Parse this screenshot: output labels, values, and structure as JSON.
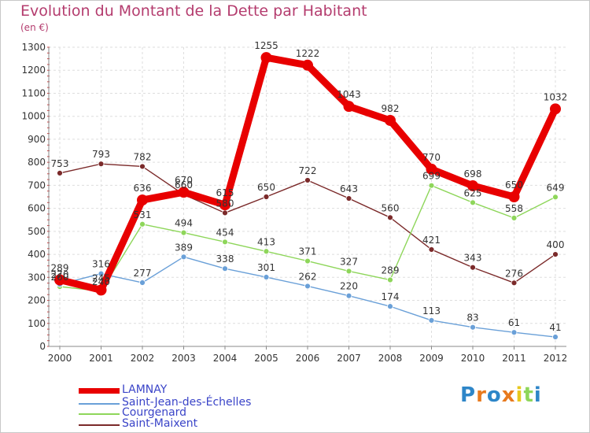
{
  "title": "Evolution du Montant de la Dette par Habitant",
  "unit": "(en €)",
  "logo": "Proxiti",
  "chart_data": {
    "type": "line",
    "x": [
      "2000",
      "2001",
      "2002",
      "2003",
      "2004",
      "2005",
      "2006",
      "2007",
      "2008",
      "2009",
      "2010",
      "2011",
      "2012"
    ],
    "ylim": [
      0,
      1300
    ],
    "yticks": [
      0,
      100,
      200,
      300,
      400,
      500,
      600,
      700,
      800,
      900,
      1000,
      1100,
      1200,
      1300
    ],
    "grid": true,
    "legend_position": "bottom-left",
    "series": [
      {
        "name": "Saint-Maixent",
        "color": "#7b2a2a",
        "values": [
          753,
          793,
          782,
          660,
          580,
          650,
          722,
          643,
          560,
          421,
          343,
          276,
          400
        ],
        "labels": [
          "753",
          "793",
          "782",
          "660",
          "580",
          "650",
          "722",
          "643",
          "560",
          "421",
          "343",
          "276",
          "400"
        ]
      },
      {
        "name": "Courgenard",
        "color": "#8ed65a",
        "values": [
          260,
          240,
          531,
          494,
          454,
          413,
          371,
          327,
          289,
          699,
          625,
          558,
          649
        ],
        "labels": [
          "260",
          "240",
          "531",
          "494",
          "454",
          "413",
          "371",
          "327",
          "289",
          "699",
          "625",
          "558",
          "649"
        ]
      },
      {
        "name": "Saint-Jean-des-Échelles",
        "color": "#6aa0d8",
        "values": [
          270,
          316,
          277,
          389,
          338,
          301,
          262,
          220,
          174,
          113,
          83,
          61,
          41
        ],
        "labels": [
          "270",
          "316",
          "277",
          "389",
          "338",
          "301",
          "262",
          "220",
          "174",
          "113",
          "83",
          "61",
          "41"
        ]
      },
      {
        "name": "LAMNAY",
        "color": "#e80000",
        "values": [
          289,
          245,
          636,
          670,
          615,
          1255,
          1222,
          1043,
          982,
          770,
          698,
          650,
          1032
        ],
        "labels": [
          "289",
          "245",
          "636",
          "670",
          "615",
          "1255",
          "1222",
          "1043",
          "982",
          "770",
          "698",
          "650",
          "1032"
        ]
      }
    ]
  }
}
